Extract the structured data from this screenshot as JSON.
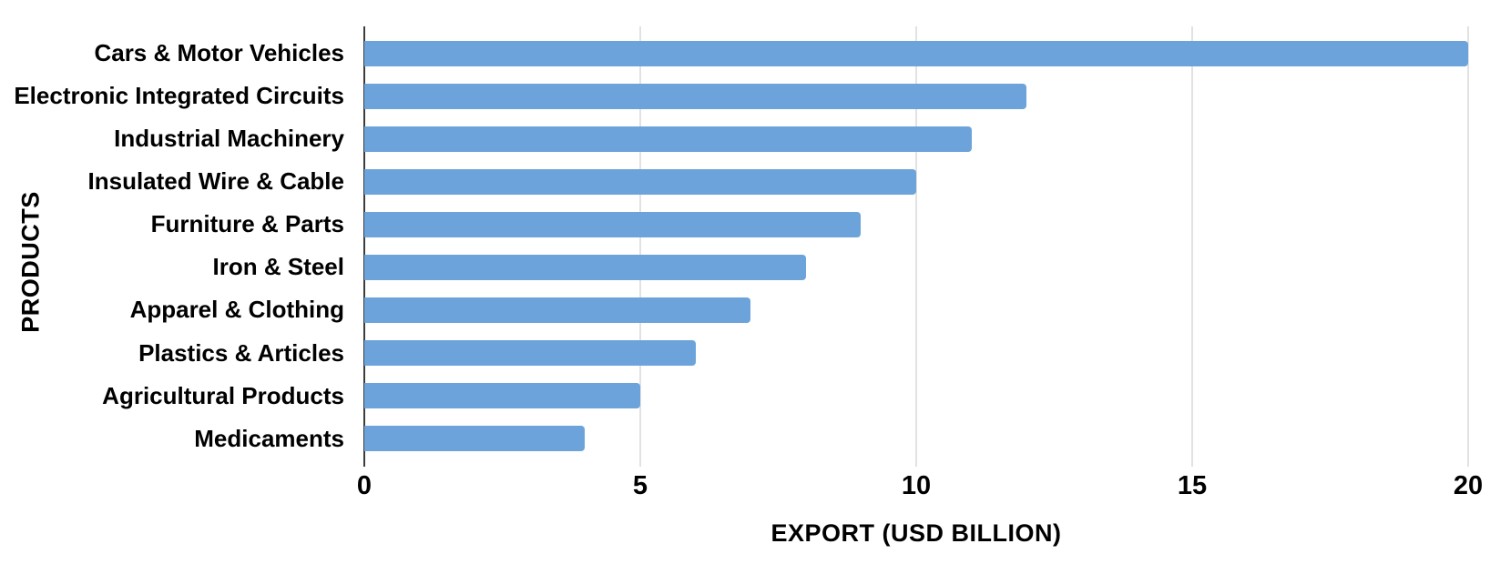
{
  "chart_data": {
    "type": "bar",
    "orientation": "horizontal",
    "title": "",
    "xlabel": "EXPORT (USD BILLION)",
    "ylabel": "PRODUCTS",
    "categories": [
      "Cars & Motor Vehicles",
      "Electronic Integrated Circuits",
      "Industrial Machinery",
      "Insulated Wire & Cable",
      "Furniture & Parts",
      "Iron & Steel",
      "Apparel & Clothing",
      "Plastics & Articles",
      "Agricultural Products",
      "Medicaments"
    ],
    "values": [
      20,
      12,
      11,
      10,
      9,
      8,
      7,
      6,
      5,
      4
    ],
    "xlim": [
      0,
      20
    ],
    "xticks": [
      0,
      5,
      10,
      15,
      20
    ],
    "grid": true,
    "legend": false,
    "colors": {
      "bar": "#6DA3DB",
      "gridline": "#E2E2E2",
      "axis_line": "#3C3C3C",
      "text": "#000000",
      "background": "#FFFFFF"
    }
  }
}
